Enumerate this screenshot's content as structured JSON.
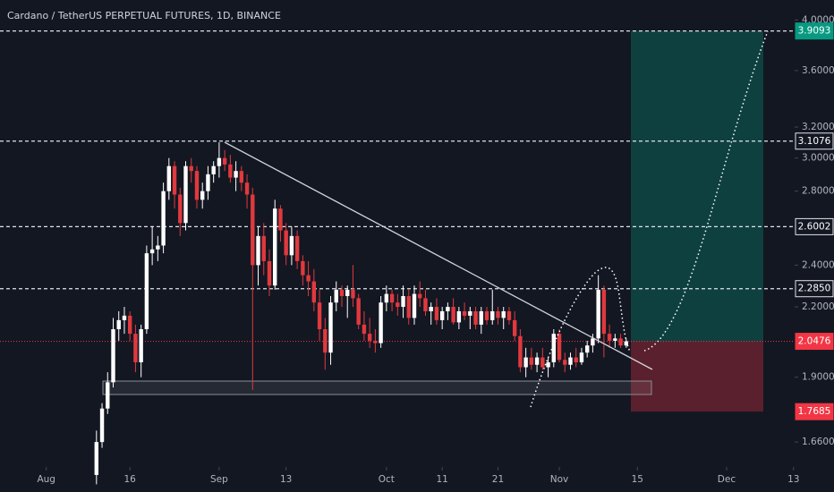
{
  "chart_data": {
    "type": "candlestick",
    "title": "Cardano / TetherUS PERPETUAL FUTURES, 1D, BINANCE",
    "log_scale": true,
    "up_color": "#ffffff",
    "down_color": "#e0393e",
    "x": [
      9,
      10,
      11,
      12,
      13,
      14,
      15,
      16,
      17,
      18,
      19,
      20,
      21,
      22,
      23,
      24,
      25,
      26,
      27,
      28,
      29,
      30,
      31,
      32,
      33,
      34,
      35,
      36,
      37,
      38,
      39,
      40,
      41,
      42,
      43,
      44,
      45,
      46,
      47,
      48,
      49,
      50,
      51,
      52,
      53,
      54,
      55,
      56,
      57,
      58,
      59,
      60,
      61,
      62,
      63,
      64,
      65,
      66,
      67,
      68,
      69,
      70,
      71,
      72,
      73,
      74,
      75,
      76,
      77,
      78,
      79,
      80,
      81,
      82,
      83,
      84,
      85,
      86,
      87,
      88,
      89,
      90,
      91,
      92,
      93,
      94,
      95,
      96,
      97,
      98,
      99,
      100,
      101,
      102,
      103,
      104
    ],
    "ohlc": [
      [
        1.55,
        1.7,
        1.52,
        1.66
      ],
      [
        1.66,
        1.8,
        1.64,
        1.78
      ],
      [
        1.78,
        1.92,
        1.76,
        1.88
      ],
      [
        1.88,
        2.15,
        1.86,
        2.1
      ],
      [
        2.1,
        2.18,
        2.05,
        2.14
      ],
      [
        2.14,
        2.2,
        2.08,
        2.16
      ],
      [
        2.16,
        2.18,
        2.05,
        2.08
      ],
      [
        2.08,
        2.12,
        1.92,
        1.96
      ],
      [
        1.96,
        2.12,
        1.9,
        2.1
      ],
      [
        2.1,
        2.5,
        2.08,
        2.46
      ],
      [
        2.46,
        2.6,
        2.4,
        2.48
      ],
      [
        2.48,
        2.55,
        2.42,
        2.5
      ],
      [
        2.5,
        2.85,
        2.46,
        2.8
      ],
      [
        2.8,
        3.0,
        2.75,
        2.95
      ],
      [
        2.95,
        2.98,
        2.7,
        2.78
      ],
      [
        2.78,
        2.82,
        2.55,
        2.62
      ],
      [
        2.62,
        2.98,
        2.58,
        2.95
      ],
      [
        2.95,
        3.0,
        2.85,
        2.92
      ],
      [
        2.92,
        2.95,
        2.7,
        2.75
      ],
      [
        2.75,
        2.85,
        2.7,
        2.8
      ],
      [
        2.8,
        2.95,
        2.75,
        2.9
      ],
      [
        2.9,
        2.98,
        2.85,
        2.95
      ],
      [
        2.95,
        3.1,
        2.88,
        3.0
      ],
      [
        3.0,
        3.05,
        2.92,
        2.96
      ],
      [
        2.96,
        3.02,
        2.85,
        2.88
      ],
      [
        2.88,
        2.98,
        2.8,
        2.92
      ],
      [
        2.92,
        2.95,
        2.8,
        2.85
      ],
      [
        2.85,
        2.9,
        2.7,
        2.78
      ],
      [
        2.78,
        2.82,
        1.85,
        2.4
      ],
      [
        2.4,
        2.6,
        2.3,
        2.55
      ],
      [
        2.55,
        2.62,
        2.35,
        2.42
      ],
      [
        2.42,
        2.48,
        2.25,
        2.3
      ],
      [
        2.3,
        2.75,
        2.28,
        2.7
      ],
      [
        2.7,
        2.72,
        2.52,
        2.58
      ],
      [
        2.58,
        2.62,
        2.4,
        2.45
      ],
      [
        2.45,
        2.6,
        2.4,
        2.55
      ],
      [
        2.55,
        2.58,
        2.38,
        2.42
      ],
      [
        2.42,
        2.45,
        2.3,
        2.35
      ],
      [
        2.35,
        2.42,
        2.25,
        2.32
      ],
      [
        2.32,
        2.38,
        2.18,
        2.22
      ],
      [
        2.22,
        2.28,
        2.05,
        2.1
      ],
      [
        2.1,
        2.15,
        1.93,
        2.0
      ],
      [
        2.0,
        2.25,
        1.95,
        2.22
      ],
      [
        2.22,
        2.32,
        2.18,
        2.28
      ],
      [
        2.28,
        2.3,
        2.2,
        2.25
      ],
      [
        2.25,
        2.3,
        2.15,
        2.28
      ],
      [
        2.28,
        2.4,
        2.2,
        2.24
      ],
      [
        2.24,
        2.26,
        2.1,
        2.12
      ],
      [
        2.12,
        2.18,
        2.05,
        2.08
      ],
      [
        2.08,
        2.15,
        2.02,
        2.05
      ],
      [
        2.05,
        2.1,
        2.0,
        2.04
      ],
      [
        2.04,
        2.25,
        2.02,
        2.22
      ],
      [
        2.22,
        2.3,
        2.18,
        2.26
      ],
      [
        2.26,
        2.28,
        2.18,
        2.22
      ],
      [
        2.22,
        2.26,
        2.16,
        2.2
      ],
      [
        2.2,
        2.3,
        2.15,
        2.25
      ],
      [
        2.25,
        2.28,
        2.12,
        2.15
      ],
      [
        2.15,
        2.3,
        2.12,
        2.26
      ],
      [
        2.26,
        2.32,
        2.2,
        2.24
      ],
      [
        2.24,
        2.28,
        2.16,
        2.18
      ],
      [
        2.18,
        2.22,
        2.12,
        2.2
      ],
      [
        2.2,
        2.24,
        2.12,
        2.14
      ],
      [
        2.14,
        2.2,
        2.1,
        2.18
      ],
      [
        2.18,
        2.22,
        2.14,
        2.2
      ],
      [
        2.2,
        2.24,
        2.12,
        2.13
      ],
      [
        2.13,
        2.2,
        2.1,
        2.18
      ],
      [
        2.18,
        2.22,
        2.14,
        2.16
      ],
      [
        2.16,
        2.2,
        2.1,
        2.18
      ],
      [
        2.18,
        2.2,
        2.1,
        2.12
      ],
      [
        2.12,
        2.2,
        2.08,
        2.18
      ],
      [
        2.18,
        2.2,
        2.12,
        2.14
      ],
      [
        2.14,
        2.28,
        2.12,
        2.18
      ],
      [
        2.18,
        2.2,
        2.12,
        2.15
      ],
      [
        2.15,
        2.2,
        2.1,
        2.18
      ],
      [
        2.18,
        2.2,
        2.12,
        2.14
      ],
      [
        2.14,
        2.18,
        2.05,
        2.07
      ],
      [
        2.07,
        2.1,
        1.92,
        1.94
      ],
      [
        1.94,
        2.02,
        1.9,
        1.98
      ],
      [
        1.98,
        2.02,
        1.93,
        1.95
      ],
      [
        1.95,
        2.0,
        1.92,
        1.98
      ],
      [
        1.98,
        2.02,
        1.93,
        1.94
      ],
      [
        1.94,
        1.98,
        1.9,
        1.96
      ],
      [
        1.96,
        2.1,
        1.94,
        2.08
      ],
      [
        2.08,
        2.1,
        1.96,
        1.97
      ],
      [
        1.97,
        2.0,
        1.92,
        1.95
      ],
      [
        1.95,
        2.0,
        1.93,
        1.98
      ],
      [
        1.98,
        2.02,
        1.94,
        1.96
      ],
      [
        1.96,
        2.02,
        1.95,
        2.0
      ],
      [
        2.0,
        2.05,
        1.98,
        2.03
      ],
      [
        2.03,
        2.08,
        2.0,
        2.06
      ],
      [
        2.06,
        2.35,
        2.04,
        2.28
      ],
      [
        2.28,
        2.3,
        1.98,
        2.08
      ],
      [
        2.08,
        2.12,
        2.02,
        2.05
      ],
      [
        2.05,
        2.08,
        2.02,
        2.06
      ],
      [
        2.06,
        2.08,
        2.02,
        2.03
      ],
      [
        2.03,
        2.06,
        2.02,
        2.0476
      ]
    ],
    "xlim": [
      -8.3,
      134.2
    ],
    "xticks": [
      {
        "value": 0,
        "label": "Aug"
      },
      {
        "value": 15,
        "label": "16"
      },
      {
        "value": 31,
        "label": "Sep"
      },
      {
        "value": 43,
        "label": "13"
      },
      {
        "value": 61,
        "label": "Oct"
      },
      {
        "value": 71,
        "label": "11"
      },
      {
        "value": 81,
        "label": "21"
      },
      {
        "value": 92,
        "label": "Nov"
      },
      {
        "value": 106,
        "label": "15"
      },
      {
        "value": 122,
        "label": "Dec"
      },
      {
        "value": 134,
        "label": "13"
      }
    ],
    "ylim": [
      1.576,
      4.17
    ],
    "yticks": [
      {
        "value": 1.66,
        "label": "1.6600"
      },
      {
        "value": 1.9,
        "label": "1.9000"
      },
      {
        "value": 2.2,
        "label": "2.2000"
      },
      {
        "value": 2.4,
        "label": "2.4000"
      },
      {
        "value": 2.8,
        "label": "2.8000"
      },
      {
        "value": 3.0,
        "label": "3.0000"
      },
      {
        "value": 3.2,
        "label": "3.2000"
      },
      {
        "value": 3.6,
        "label": "3.6000"
      },
      {
        "value": 4.0,
        "label": "4.0000"
      }
    ],
    "levels": [
      3.1076,
      2.6002,
      {
        "value": 2.285,
        "label": "2.2850"
      }
    ],
    "last_price": 2.0476,
    "position": {
      "target": 3.9093,
      "stop": 1.7685
    }
  }
}
